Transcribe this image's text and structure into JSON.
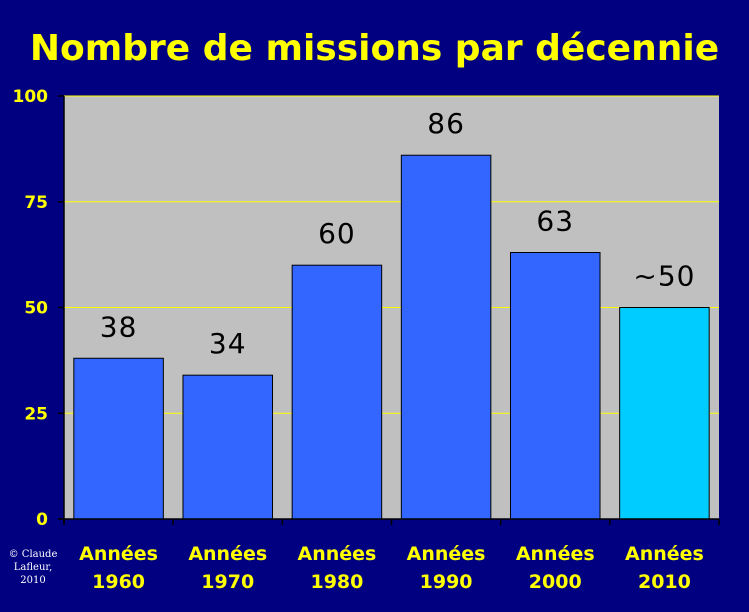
{
  "chart_data": {
    "type": "bar",
    "title": "Nombre de missions par décennie",
    "categories": [
      [
        "Années",
        "1960"
      ],
      [
        "Années",
        "1970"
      ],
      [
        "Années",
        "1980"
      ],
      [
        "Années",
        "1990"
      ],
      [
        "Années",
        "2000"
      ],
      [
        "Années",
        "2010"
      ]
    ],
    "values": [
      38,
      34,
      60,
      86,
      63,
      50
    ],
    "data_labels": [
      "38",
      "34",
      "60",
      "86",
      "63",
      "~50"
    ],
    "ylim": [
      0,
      100
    ],
    "yticks": [
      0,
      25,
      50,
      75,
      100
    ],
    "grid": true,
    "colors": {
      "background": "#000080",
      "plot_area": "#c0c0c0",
      "bar": "#3366ff",
      "bar_highlight": "#00ccff",
      "gridline": "#ffff00",
      "title": "#ffff00",
      "axis_text": "#ffff00",
      "data_label": "#000000"
    }
  },
  "copyright": [
    "© Claude",
    "Lafleur,",
    "2010"
  ]
}
